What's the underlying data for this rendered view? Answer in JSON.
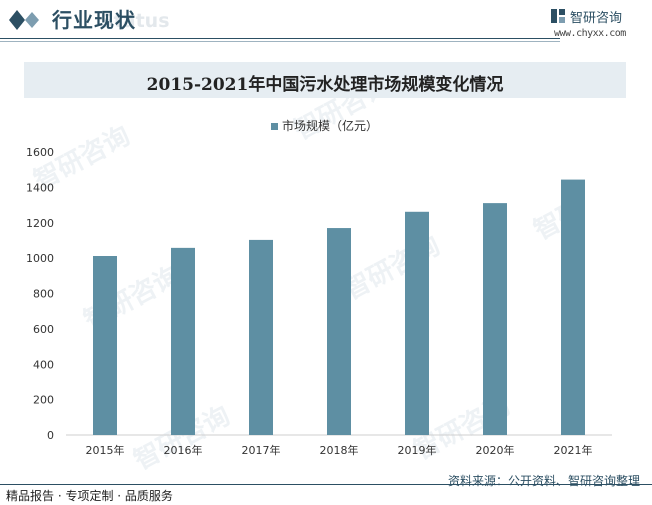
{
  "header": {
    "title": "行业现状",
    "ghost_text": "Status"
  },
  "brand": {
    "name": "智研咨询",
    "url": "www.chyxx.com",
    "logo_icon": "chyxx-logo-icon"
  },
  "chart_data": {
    "type": "bar",
    "title": "2015-2021年中国污水处理市场规模变化情况",
    "categories": [
      "2015年",
      "2016年",
      "2017年",
      "2018年",
      "2019年",
      "2020年",
      "2021年"
    ],
    "series": [
      {
        "name": "市场规模（亿元）",
        "values": [
          1012,
          1058,
          1103,
          1170,
          1262,
          1311,
          1444
        ]
      }
    ],
    "y_ticks": [
      "0",
      "200",
      "400",
      "600",
      "800",
      "1000",
      "1200",
      "1400",
      "1600"
    ],
    "ylim": [
      0,
      1600
    ],
    "legend_position": "top-center",
    "grid": false,
    "bar_color": "#5e8fa3"
  },
  "source": "资料来源：公开资料、智研咨询整理",
  "footer": {
    "text": "精品报告 · 专项定制 · 品质服务"
  },
  "colors": {
    "accent": "#2c4f63",
    "bar": "#5e8fa3",
    "title_band": "#e6edf2"
  }
}
